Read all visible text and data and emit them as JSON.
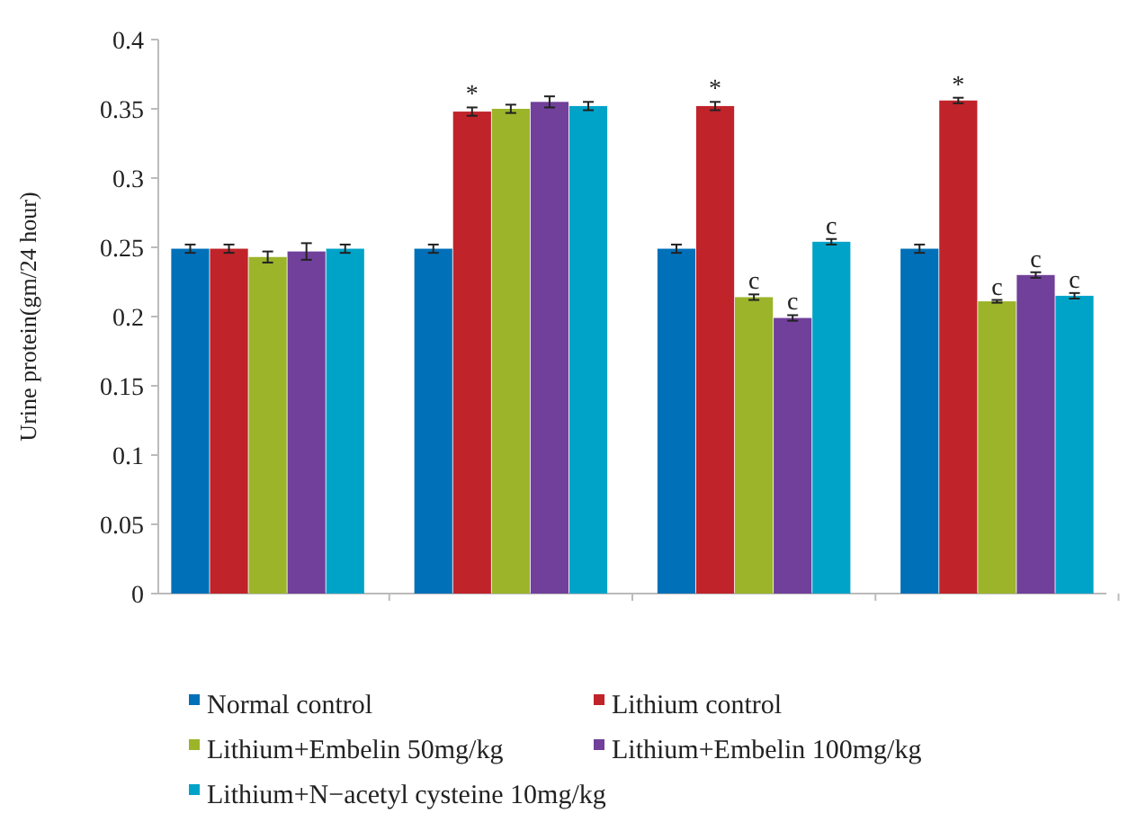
{
  "chart_data": {
    "type": "bar",
    "ylabel": "Urine protein(gm/24 hour)",
    "categories": [
      null,
      null,
      null,
      null
    ],
    "ylim": [
      0,
      0.4
    ],
    "yticks": [
      {
        "value": 0,
        "label": "0"
      },
      {
        "value": 0.05,
        "label": "0.05"
      },
      {
        "value": 0.1,
        "label": "0.1"
      },
      {
        "value": 0.15,
        "label": "0.15"
      },
      {
        "value": 0.2,
        "label": "0.2"
      },
      {
        "value": 0.25,
        "label": "0.25"
      },
      {
        "value": 0.3,
        "label": "0.3"
      },
      {
        "value": 0.35,
        "label": "0.35"
      },
      {
        "value": 0.4,
        "label": "0.4"
      }
    ],
    "grid": false,
    "legend": "bottom",
    "series": [
      {
        "name": "Normal control",
        "color": "#0070b8",
        "values": [
          0.249,
          0.249,
          0.249,
          0.249
        ],
        "errors": [
          0.003,
          0.003,
          0.003,
          0.003
        ]
      },
      {
        "name": "Lithium control",
        "color": "#c0232a",
        "values": [
          0.249,
          0.348,
          0.352,
          0.356
        ],
        "errors": [
          0.003,
          0.003,
          0.003,
          0.002
        ],
        "value_labels": [
          null,
          "*",
          "*",
          "*"
        ]
      },
      {
        "name": "Lithium+Embelin 50mg/kg",
        "color": "#9bb42a",
        "values": [
          0.243,
          0.35,
          0.214,
          0.211
        ],
        "errors": [
          0.004,
          0.003,
          0.002,
          0.001
        ],
        "value_labels": [
          null,
          null,
          "c",
          "c"
        ]
      },
      {
        "name": "Lithium+Embelin 100mg/kg",
        "color": "#70409a",
        "values": [
          0.247,
          0.355,
          0.199,
          0.23
        ],
        "errors": [
          0.006,
          0.004,
          0.002,
          0.002
        ],
        "value_labels": [
          null,
          null,
          "c",
          "c"
        ]
      },
      {
        "name": "Lithium+N−acetyl cysteine 10mg/kg",
        "color": "#00a3c8",
        "values": [
          0.249,
          0.352,
          0.254,
          0.215
        ],
        "errors": [
          0.003,
          0.003,
          0.002,
          0.002
        ],
        "value_labels": [
          null,
          null,
          "c",
          "c"
        ]
      }
    ]
  }
}
